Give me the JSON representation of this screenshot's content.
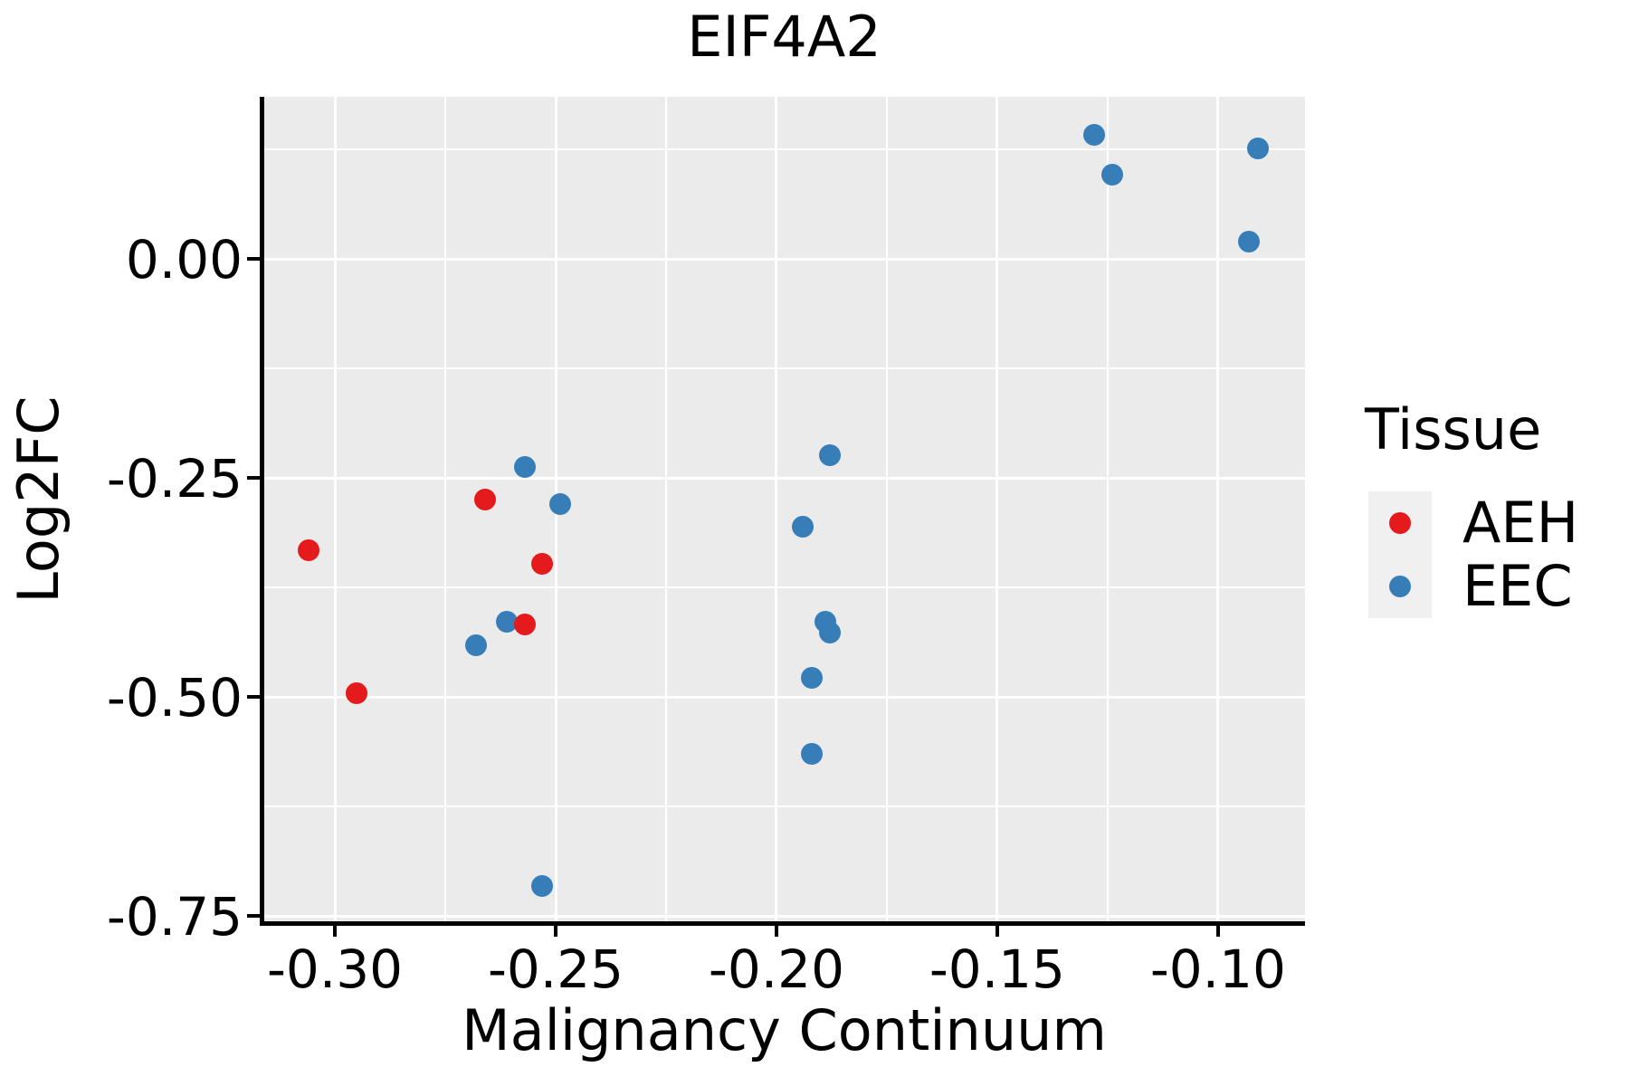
{
  "title": "EIF4A2",
  "colors": {
    "aeh": "#E41A1C",
    "eec": "#377EB8",
    "panel_background": "#EBEBEB",
    "gridline": "#FFFFFF",
    "axis_line": "#000000",
    "legend_key_background": "#F0F0F0",
    "text": "#000000"
  },
  "chart_data": {
    "type": "scatter",
    "title": "EIF4A2",
    "xlabel": "Malignancy Continuum",
    "ylabel": "Log2FC",
    "xlim": [
      -0.3162,
      -0.0803
    ],
    "ylim": [
      -0.758,
      0.185
    ],
    "grid": "on",
    "legend_position": "right",
    "x_major_ticks": [
      {
        "value": -0.3,
        "label": "-0.30"
      },
      {
        "value": -0.25,
        "label": "-0.25"
      },
      {
        "value": -0.2,
        "label": "-0.20"
      },
      {
        "value": -0.15,
        "label": "-0.15"
      },
      {
        "value": -0.1,
        "label": "-0.10"
      }
    ],
    "x_minor_ticks": [
      -0.275,
      -0.225,
      -0.175,
      -0.125
    ],
    "y_major_ticks": [
      {
        "value": 0.0,
        "label": "0.00"
      },
      {
        "value": -0.25,
        "label": "-0.25"
      },
      {
        "value": -0.5,
        "label": "-0.50"
      },
      {
        "value": -0.75,
        "label": "-0.75"
      }
    ],
    "y_minor_ticks": [
      0.125,
      -0.125,
      -0.375,
      -0.625
    ],
    "legend": {
      "title": "Tissue",
      "entries": [
        {
          "label": "AEH",
          "color": "#E41A1C"
        },
        {
          "label": "EEC",
          "color": "#377EB8"
        }
      ]
    },
    "series": [
      {
        "name": "EEC",
        "color": "#377EB8",
        "points": [
          [
            -0.257,
            -0.237
          ],
          [
            -0.249,
            -0.28
          ],
          [
            -0.261,
            -0.414
          ],
          [
            -0.268,
            -0.441
          ],
          [
            -0.253,
            -0.716
          ],
          [
            -0.188,
            -0.224
          ],
          [
            -0.194,
            -0.306
          ],
          [
            -0.189,
            -0.414
          ],
          [
            -0.188,
            -0.426
          ],
          [
            -0.192,
            -0.478
          ],
          [
            -0.192,
            -0.565
          ],
          [
            -0.128,
            0.142
          ],
          [
            -0.124,
            0.096
          ],
          [
            -0.091,
            0.126
          ],
          [
            -0.093,
            0.02
          ]
        ]
      },
      {
        "name": "AEH",
        "color": "#E41A1C",
        "points": [
          [
            -0.306,
            -0.332
          ],
          [
            -0.295,
            -0.496
          ],
          [
            -0.266,
            -0.275
          ],
          [
            -0.253,
            -0.348
          ],
          [
            -0.257,
            -0.417
          ]
        ]
      }
    ]
  }
}
